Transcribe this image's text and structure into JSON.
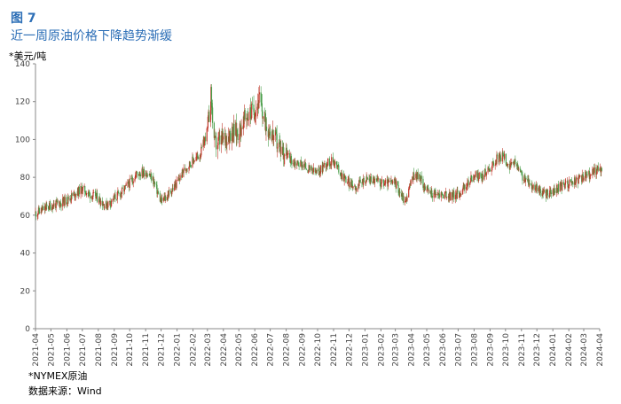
{
  "header": {
    "figure_number": "图 7",
    "title": "近一周原油价格下降趋势渐缓"
  },
  "y_unit_label": "*美元/吨",
  "footnote": "*NYMEX原油",
  "source": "数据来源：Wind",
  "colors": {
    "up": "#c0392b",
    "down": "#4a9e4a",
    "title": "#2d6fb7"
  },
  "chart_data": {
    "type": "candlestick",
    "title": "",
    "xlabel": "",
    "ylabel": "*美元/吨",
    "ylim": [
      0,
      140
    ],
    "y_ticks": [
      0,
      20,
      40,
      60,
      80,
      100,
      120,
      140
    ],
    "x_ticks": [
      "2021-04",
      "2021-05",
      "2021-06",
      "2021-07",
      "2021-08",
      "2021-09",
      "2021-10",
      "2021-11",
      "2021-12",
      "2022-01",
      "2022-02",
      "2022-03",
      "2022-04",
      "2022-05",
      "2022-06",
      "2022-07",
      "2022-08",
      "2022-09",
      "2022-10",
      "2022-11",
      "2022-12",
      "2023-01",
      "2023-02",
      "2023-03",
      "2023-04",
      "2023-05",
      "2023-06",
      "2023-07",
      "2023-08",
      "2023-09",
      "2023-10",
      "2023-11",
      "2023-12",
      "2024-01",
      "2024-02",
      "2024-03",
      "2024-04"
    ],
    "grid": false,
    "series": [
      {
        "name": "NYMEX原油",
        "values": [
          {
            "date": "2021-04-01",
            "close": 61
          },
          {
            "date": "2021-04-15",
            "close": 63
          },
          {
            "date": "2021-05-01",
            "close": 65
          },
          {
            "date": "2021-05-15",
            "close": 66
          },
          {
            "date": "2021-06-01",
            "close": 68
          },
          {
            "date": "2021-06-15",
            "close": 71
          },
          {
            "date": "2021-07-01",
            "close": 74
          },
          {
            "date": "2021-07-15",
            "close": 71
          },
          {
            "date": "2021-08-01",
            "close": 69
          },
          {
            "date": "2021-08-15",
            "close": 65
          },
          {
            "date": "2021-09-01",
            "close": 69
          },
          {
            "date": "2021-09-15",
            "close": 72
          },
          {
            "date": "2021-10-01",
            "close": 77
          },
          {
            "date": "2021-10-15",
            "close": 82
          },
          {
            "date": "2021-11-01",
            "close": 83
          },
          {
            "date": "2021-11-15",
            "close": 79
          },
          {
            "date": "2021-12-01",
            "close": 67
          },
          {
            "date": "2021-12-15",
            "close": 71
          },
          {
            "date": "2022-01-01",
            "close": 77
          },
          {
            "date": "2022-01-15",
            "close": 84
          },
          {
            "date": "2022-02-01",
            "close": 89
          },
          {
            "date": "2022-02-15",
            "close": 92
          },
          {
            "date": "2022-03-01",
            "close": 105
          },
          {
            "date": "2022-03-08",
            "close": 123
          },
          {
            "date": "2022-03-15",
            "close": 97
          },
          {
            "date": "2022-04-01",
            "close": 100
          },
          {
            "date": "2022-04-15",
            "close": 104
          },
          {
            "date": "2022-05-01",
            "close": 104
          },
          {
            "date": "2022-05-15",
            "close": 112
          },
          {
            "date": "2022-06-01",
            "close": 116
          },
          {
            "date": "2022-06-10",
            "close": 121
          },
          {
            "date": "2022-06-20",
            "close": 109
          },
          {
            "date": "2022-07-01",
            "close": 105
          },
          {
            "date": "2022-07-15",
            "close": 98
          },
          {
            "date": "2022-08-01",
            "close": 92
          },
          {
            "date": "2022-08-15",
            "close": 88
          },
          {
            "date": "2022-09-01",
            "close": 87
          },
          {
            "date": "2022-09-15",
            "close": 84
          },
          {
            "date": "2022-10-01",
            "close": 82
          },
          {
            "date": "2022-10-15",
            "close": 87
          },
          {
            "date": "2022-11-01",
            "close": 89
          },
          {
            "date": "2022-11-15",
            "close": 82
          },
          {
            "date": "2022-12-01",
            "close": 77
          },
          {
            "date": "2022-12-15",
            "close": 75
          },
          {
            "date": "2023-01-01",
            "close": 79
          },
          {
            "date": "2023-01-15",
            "close": 79
          },
          {
            "date": "2023-02-01",
            "close": 77
          },
          {
            "date": "2023-02-15",
            "close": 77
          },
          {
            "date": "2023-03-01",
            "close": 77
          },
          {
            "date": "2023-03-20",
            "close": 67
          },
          {
            "date": "2023-04-05",
            "close": 81
          },
          {
            "date": "2023-04-15",
            "close": 81
          },
          {
            "date": "2023-05-01",
            "close": 73
          },
          {
            "date": "2023-05-15",
            "close": 71
          },
          {
            "date": "2023-06-01",
            "close": 71
          },
          {
            "date": "2023-06-15",
            "close": 70
          },
          {
            "date": "2023-07-01",
            "close": 71
          },
          {
            "date": "2023-07-15",
            "close": 75
          },
          {
            "date": "2023-08-01",
            "close": 81
          },
          {
            "date": "2023-08-15",
            "close": 80
          },
          {
            "date": "2023-09-01",
            "close": 85
          },
          {
            "date": "2023-09-15",
            "close": 90
          },
          {
            "date": "2023-09-28",
            "close": 91
          },
          {
            "date": "2023-10-10",
            "close": 85
          },
          {
            "date": "2023-10-20",
            "close": 88
          },
          {
            "date": "2023-11-01",
            "close": 81
          },
          {
            "date": "2023-11-15",
            "close": 77
          },
          {
            "date": "2023-12-01",
            "close": 74
          },
          {
            "date": "2023-12-15",
            "close": 71
          },
          {
            "date": "2024-01-01",
            "close": 72
          },
          {
            "date": "2024-01-15",
            "close": 75
          },
          {
            "date": "2024-02-01",
            "close": 77
          },
          {
            "date": "2024-02-15",
            "close": 78
          },
          {
            "date": "2024-03-01",
            "close": 80
          },
          {
            "date": "2024-03-15",
            "close": 82
          },
          {
            "date": "2024-04-01",
            "close": 85
          },
          {
            "date": "2024-04-05",
            "close": 83
          }
        ]
      }
    ]
  }
}
